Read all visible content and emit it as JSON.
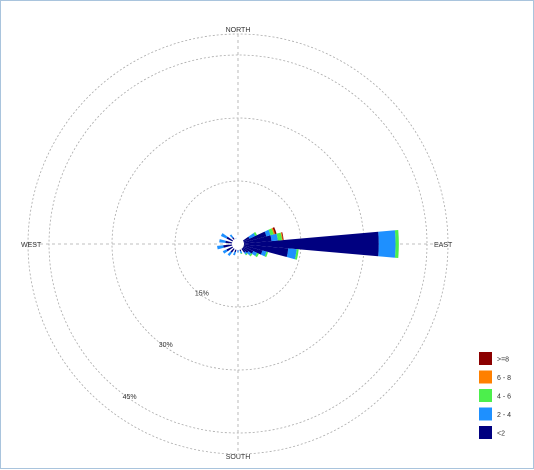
{
  "chart_data": {
    "type": "wind-rose",
    "title": "",
    "direction_labels": {
      "north": "NORTH",
      "south": "SOUTH",
      "east": "EAST",
      "west": "WEST"
    },
    "radial_ticks": [
      {
        "value": 15,
        "label": "15%"
      },
      {
        "value": 30,
        "label": "30%"
      },
      {
        "value": 45,
        "label": "45%"
      }
    ],
    "radial_max": 50,
    "direction_step_deg": 10,
    "grid": true,
    "legend_position": "bottom-right",
    "speed_bins": [
      {
        "label": "<2",
        "color": "#000080"
      },
      {
        "label": "2 - 4",
        "color": "#1e90ff"
      },
      {
        "label": "4 - 6",
        "color": "#4cef4c"
      },
      {
        "label": "6 - 8",
        "color": "#ff8000"
      },
      {
        "label": ">=8",
        "color": "#8b0000"
      }
    ],
    "legend_order": [
      ">=8",
      "6 - 8",
      "4 - 6",
      "2 - 4",
      "<2"
    ],
    "series": [
      {
        "direction": 90,
        "values": [
          33.5,
          4.0,
          0.8,
          0,
          0
        ]
      },
      {
        "direction": 100,
        "values": [
          12.0,
          2.0,
          0.5,
          0,
          0
        ]
      },
      {
        "direction": 80,
        "values": [
          8.0,
          1.5,
          1.0,
          0.2,
          0.2
        ]
      },
      {
        "direction": 70,
        "values": [
          7.0,
          1.0,
          0.8,
          0.3,
          0.4
        ]
      },
      {
        "direction": 60,
        "values": [
          3.0,
          1.5,
          0.5,
          0,
          0
        ]
      },
      {
        "direction": 110,
        "values": [
          6.0,
          1.0,
          0.4,
          0,
          0
        ]
      },
      {
        "direction": 120,
        "values": [
          4.0,
          1.0,
          0.5,
          0,
          0
        ]
      },
      {
        "direction": 130,
        "values": [
          3.0,
          0.8,
          0.4,
          0,
          0
        ]
      },
      {
        "direction": 140,
        "values": [
          2.5,
          0.5,
          0.3,
          0,
          0
        ]
      },
      {
        "direction": 160,
        "values": [
          1.8,
          0.5,
          0.2,
          0,
          0
        ]
      },
      {
        "direction": 180,
        "values": [
          1.5,
          0.5,
          0,
          0,
          0
        ]
      },
      {
        "direction": 200,
        "values": [
          2.0,
          0.8,
          0,
          0,
          0
        ]
      },
      {
        "direction": 220,
        "values": [
          2.5,
          1.0,
          0,
          0,
          0
        ]
      },
      {
        "direction": 240,
        "values": [
          3.0,
          1.0,
          0,
          0,
          0
        ]
      },
      {
        "direction": 260,
        "values": [
          3.5,
          1.5,
          0,
          0,
          0
        ]
      },
      {
        "direction": 280,
        "values": [
          3.0,
          1.5,
          0,
          0,
          0
        ]
      },
      {
        "direction": 300,
        "values": [
          3.0,
          1.5,
          0,
          0,
          0
        ]
      },
      {
        "direction": 320,
        "values": [
          2.0,
          0.8,
          0,
          0,
          0
        ]
      },
      {
        "direction": 340,
        "values": [
          1.0,
          0.5,
          0,
          0,
          0
        ]
      }
    ]
  }
}
